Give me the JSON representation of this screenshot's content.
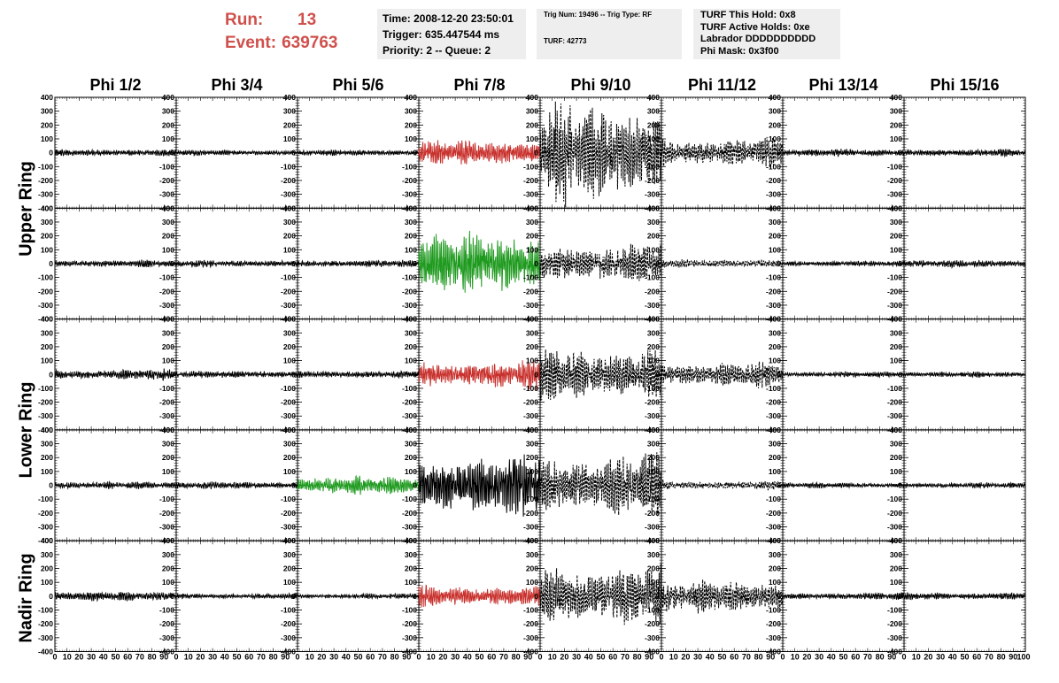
{
  "run_info": {
    "run_label": "Run:",
    "run_value": "13",
    "event_label": "Event:",
    "event_value": "639763"
  },
  "trigger_box": {
    "time": "Time: 2008-12-20 23:50:01",
    "trigger": "Trigger: 635.447544 ms",
    "priority": "Priority: 2 -- Queue: 2"
  },
  "trig_box": {
    "line1": "Trig Num: 19496 -- Trig Type: RF",
    "line2": "TURF: 42773"
  },
  "turf_box": {
    "line1": "TURF This Hold: 0x8",
    "line2": "TURF Active Holds: 0xe",
    "line3": "Labrador DDDDDDDDDD",
    "line4": "Phi Mask: 0x3f00"
  },
  "column_headers": [
    "Phi 1/2",
    "Phi 3/4",
    "Phi 5/6",
    "Phi 7/8",
    "Phi 9/10",
    "Phi 11/12",
    "Phi 13/14",
    "Phi 15/16"
  ],
  "ring_labels": [
    "Upper Ring",
    "Lower Ring",
    "Nadir Ring"
  ],
  "colors": {
    "title_red": "#d0504c",
    "box_bg": "#eeeeee",
    "trace_black": "#000000",
    "trace_red": "#c8302c",
    "trace_green": "#1e9a1e"
  },
  "chart_data": {
    "type": "line",
    "grid": false,
    "xlim": [
      0,
      100
    ],
    "ylim": [
      -400,
      400
    ],
    "y_ticks": [
      -400,
      -300,
      -200,
      -100,
      0,
      100,
      200,
      300,
      400
    ],
    "y_tick_labels": [
      "-400",
      "-300",
      "-200",
      "-100",
      "0",
      "100",
      "200",
      "300",
      "400"
    ],
    "x_ticks": [
      0,
      10,
      20,
      30,
      40,
      50,
      60,
      70,
      80,
      90
    ],
    "x_tick_labels": [
      "0",
      "10",
      "20",
      "30",
      "40",
      "50",
      "60",
      "70",
      "80",
      "90"
    ],
    "x_tick_label_last": "100",
    "rows": 5,
    "cols": 8,
    "panels": [
      [
        {
          "amp": 20,
          "color": "black",
          "style": "solid"
        },
        {
          "amp": 15,
          "color": "black",
          "style": "solid"
        },
        {
          "amp": 15,
          "color": "black",
          "style": "solid"
        },
        {
          "amp": 70,
          "color": "red",
          "style": "solid"
        },
        {
          "amp": 280,
          "color": "black",
          "style": "dashed"
        },
        {
          "amp": 80,
          "color": "black",
          "style": "dashed"
        },
        {
          "amp": 20,
          "color": "black",
          "style": "solid"
        },
        {
          "amp": 20,
          "color": "black",
          "style": "solid"
        }
      ],
      [
        {
          "amp": 20,
          "color": "black",
          "style": "solid"
        },
        {
          "amp": 20,
          "color": "black",
          "style": "solid"
        },
        {
          "amp": 20,
          "color": "black",
          "style": "solid"
        },
        {
          "amp": 170,
          "color": "green",
          "style": "solid"
        },
        {
          "amp": 110,
          "color": "black",
          "style": "dashed"
        },
        {
          "amp": 25,
          "color": "black",
          "style": "dashed"
        },
        {
          "amp": 15,
          "color": "black",
          "style": "solid"
        },
        {
          "amp": 20,
          "color": "black",
          "style": "solid"
        }
      ],
      [
        {
          "amp": 30,
          "color": "black",
          "style": "solid"
        },
        {
          "amp": 20,
          "color": "black",
          "style": "solid"
        },
        {
          "amp": 20,
          "color": "black",
          "style": "solid"
        },
        {
          "amp": 80,
          "color": "red",
          "style": "solid"
        },
        {
          "amp": 150,
          "color": "black",
          "style": "dashed"
        },
        {
          "amp": 70,
          "color": "black",
          "style": "dashed"
        },
        {
          "amp": 15,
          "color": "black",
          "style": "solid"
        },
        {
          "amp": 15,
          "color": "black",
          "style": "solid"
        }
      ],
      [
        {
          "amp": 20,
          "color": "black",
          "style": "solid"
        },
        {
          "amp": 20,
          "color": "black",
          "style": "solid"
        },
        {
          "amp": 50,
          "color": "green",
          "style": "solid"
        },
        {
          "amp": 180,
          "color": "black",
          "style": "solid"
        },
        {
          "amp": 170,
          "color": "black",
          "style": "dashed"
        },
        {
          "amp": 25,
          "color": "black",
          "style": "dashed"
        },
        {
          "amp": 15,
          "color": "black",
          "style": "solid"
        },
        {
          "amp": 15,
          "color": "black",
          "style": "solid"
        }
      ],
      [
        {
          "amp": 25,
          "color": "black",
          "style": "solid"
        },
        {
          "amp": 15,
          "color": "black",
          "style": "solid"
        },
        {
          "amp": 15,
          "color": "black",
          "style": "solid"
        },
        {
          "amp": 60,
          "color": "red",
          "style": "solid"
        },
        {
          "amp": 180,
          "color": "black",
          "style": "dashed"
        },
        {
          "amp": 90,
          "color": "black",
          "style": "dashed"
        },
        {
          "amp": 20,
          "color": "black",
          "style": "solid"
        },
        {
          "amp": 20,
          "color": "black",
          "style": "solid"
        }
      ]
    ]
  }
}
